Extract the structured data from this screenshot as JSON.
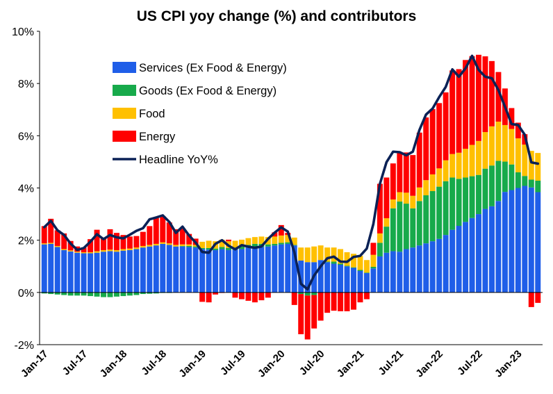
{
  "chart_data": {
    "type": "bar",
    "stacked": true,
    "title": "US CPI yoy change (%) and contributors",
    "xlabel": "",
    "ylabel": "",
    "ylim": [
      -2,
      10
    ],
    "yticks": [
      -2,
      0,
      2,
      4,
      6,
      8,
      10
    ],
    "ytick_labels": [
      "-2%",
      "0%",
      "2%",
      "4%",
      "6%",
      "8%",
      "10%"
    ],
    "xtick_labels": [
      "Jan-17",
      "Jul-17",
      "Jan-18",
      "Jul-18",
      "Jan-19",
      "Jul-19",
      "Jan-20",
      "Jul-20",
      "Jan-21",
      "Jul-21",
      "Jan-22",
      "Jul-22",
      "Jan-23"
    ],
    "xtick_months": [
      "2017-01",
      "2017-07",
      "2018-01",
      "2018-07",
      "2019-01",
      "2019-07",
      "2020-01",
      "2020-07",
      "2021-01",
      "2021-07",
      "2022-01",
      "2022-07",
      "2023-01"
    ],
    "legend_position": "upper-left",
    "categories": [
      "2017-01",
      "2017-02",
      "2017-03",
      "2017-04",
      "2017-05",
      "2017-06",
      "2017-07",
      "2017-08",
      "2017-09",
      "2017-10",
      "2017-11",
      "2017-12",
      "2018-01",
      "2018-02",
      "2018-03",
      "2018-04",
      "2018-05",
      "2018-06",
      "2018-07",
      "2018-08",
      "2018-09",
      "2018-10",
      "2018-11",
      "2018-12",
      "2019-01",
      "2019-02",
      "2019-03",
      "2019-04",
      "2019-05",
      "2019-06",
      "2019-07",
      "2019-08",
      "2019-09",
      "2019-10",
      "2019-11",
      "2019-12",
      "2020-01",
      "2020-02",
      "2020-03",
      "2020-04",
      "2020-05",
      "2020-06",
      "2020-07",
      "2020-08",
      "2020-09",
      "2020-10",
      "2020-11",
      "2020-12",
      "2021-01",
      "2021-02",
      "2021-03",
      "2021-04",
      "2021-05",
      "2021-06",
      "2021-07",
      "2021-08",
      "2021-09",
      "2021-10",
      "2021-11",
      "2021-12",
      "2022-01",
      "2022-02",
      "2022-03",
      "2022-04",
      "2022-05",
      "2022-06",
      "2022-07",
      "2022-08",
      "2022-09",
      "2022-10",
      "2022-11",
      "2022-12",
      "2023-01",
      "2023-02",
      "2023-03",
      "2023-04"
    ],
    "series": [
      {
        "name": "Services (Ex Food & Energy)",
        "color": "#1f5ee8",
        "values": [
          1.84,
          1.86,
          1.74,
          1.62,
          1.57,
          1.52,
          1.5,
          1.5,
          1.52,
          1.56,
          1.58,
          1.56,
          1.6,
          1.62,
          1.66,
          1.72,
          1.76,
          1.8,
          1.86,
          1.82,
          1.76,
          1.76,
          1.74,
          1.72,
          1.66,
          1.64,
          1.62,
          1.66,
          1.62,
          1.64,
          1.66,
          1.72,
          1.76,
          1.74,
          1.76,
          1.8,
          1.84,
          1.86,
          1.8,
          1.22,
          1.16,
          1.16,
          1.24,
          1.16,
          1.1,
          1.06,
          1.0,
          0.94,
          0.82,
          0.74,
          0.92,
          1.38,
          1.52,
          1.58,
          1.56,
          1.66,
          1.72,
          1.8,
          1.88,
          1.96,
          2.05,
          2.2,
          2.4,
          2.55,
          2.7,
          2.85,
          3.0,
          3.2,
          3.3,
          3.5,
          3.85,
          3.92,
          4.0,
          4.08,
          4.02,
          3.84
        ]
      },
      {
        "name": "Goods (Ex Food & Energy)",
        "color": "#17aa4b",
        "values": [
          -0.04,
          -0.06,
          -0.08,
          -0.1,
          -0.12,
          -0.12,
          -0.12,
          -0.14,
          -0.16,
          -0.18,
          -0.18,
          -0.16,
          -0.14,
          -0.12,
          -0.1,
          -0.06,
          -0.05,
          -0.04,
          -0.02,
          -0.02,
          0.0,
          0.02,
          0.04,
          0.04,
          0.04,
          0.06,
          0.06,
          0.08,
          0.08,
          0.08,
          0.1,
          0.1,
          0.1,
          0.12,
          0.08,
          0.06,
          0.06,
          0.06,
          0.02,
          -0.06,
          -0.12,
          -0.1,
          0.0,
          0.02,
          0.08,
          0.04,
          0.02,
          0.02,
          0.04,
          0.02,
          0.06,
          0.52,
          1.0,
          1.64,
          1.92,
          1.74,
          1.5,
          1.7,
          1.84,
          1.92,
          2.0,
          2.06,
          2.0,
          1.8,
          1.7,
          1.6,
          1.5,
          1.54,
          1.56,
          1.54,
          1.16,
          0.98,
          0.6,
          0.38,
          0.3,
          0.44
        ]
      },
      {
        "name": "Food",
        "color": "#ffc000",
        "values": [
          0.04,
          0.04,
          0.04,
          0.04,
          0.04,
          0.04,
          0.04,
          0.04,
          0.06,
          0.06,
          0.06,
          0.06,
          0.06,
          0.06,
          0.06,
          0.06,
          0.06,
          0.06,
          0.06,
          0.06,
          0.06,
          0.06,
          0.06,
          0.06,
          0.24,
          0.28,
          0.28,
          0.28,
          0.26,
          0.26,
          0.26,
          0.26,
          0.26,
          0.28,
          0.28,
          0.28,
          0.28,
          0.28,
          0.28,
          0.5,
          0.56,
          0.6,
          0.56,
          0.54,
          0.54,
          0.56,
          0.52,
          0.52,
          0.54,
          0.48,
          0.46,
          0.36,
          0.32,
          0.34,
          0.36,
          0.42,
          0.48,
          0.52,
          0.58,
          0.64,
          0.7,
          0.8,
          0.9,
          1.0,
          1.1,
          1.2,
          1.3,
          1.4,
          1.5,
          1.5,
          1.4,
          1.36,
          1.3,
          1.2,
          1.1,
          1.06
        ]
      },
      {
        "name": "Energy",
        "color": "#ff0000",
        "values": [
          0.66,
          0.92,
          0.6,
          0.6,
          0.36,
          0.2,
          0.18,
          0.5,
          0.82,
          0.48,
          0.78,
          0.66,
          0.54,
          0.46,
          0.44,
          0.54,
          0.72,
          1.0,
          1.0,
          0.8,
          0.6,
          0.6,
          0.4,
          0.24,
          -0.36,
          -0.38,
          -0.08,
          -0.02,
          0.06,
          -0.2,
          -0.26,
          -0.32,
          -0.38,
          -0.3,
          -0.2,
          0.16,
          0.4,
          0.08,
          -0.48,
          -1.54,
          -1.68,
          -1.28,
          -1.08,
          -0.78,
          -0.7,
          -0.72,
          -0.72,
          -0.66,
          -0.38,
          -0.26,
          0.46,
          1.9,
          1.56,
          1.38,
          1.54,
          1.54,
          1.56,
          2.1,
          2.4,
          2.5,
          2.5,
          2.6,
          3.2,
          3.2,
          3.4,
          3.4,
          3.3,
          2.9,
          2.5,
          1.9,
          1.4,
          0.8,
          0.6,
          0.4,
          -0.56,
          -0.4
        ]
      },
      {
        "name": "Headline YoY%",
        "color": "#0b2156",
        "type": "line",
        "values": [
          2.5,
          2.74,
          2.38,
          2.2,
          1.87,
          1.63,
          1.7,
          1.94,
          2.23,
          2.04,
          2.2,
          2.11,
          2.07,
          2.21,
          2.36,
          2.46,
          2.8,
          2.87,
          2.95,
          2.7,
          2.28,
          2.52,
          2.18,
          1.91,
          1.55,
          1.52,
          1.86,
          2.0,
          1.79,
          1.65,
          1.81,
          1.75,
          1.71,
          1.76,
          2.05,
          2.29,
          2.49,
          2.33,
          1.54,
          0.33,
          0.12,
          0.65,
          1.0,
          1.31,
          1.37,
          1.18,
          1.17,
          1.36,
          1.4,
          1.68,
          2.62,
          4.16,
          4.99,
          5.39,
          5.37,
          5.25,
          5.39,
          6.22,
          6.81,
          7.04,
          7.48,
          7.87,
          8.54,
          8.26,
          8.58,
          9.06,
          8.52,
          8.26,
          8.2,
          7.75,
          7.11,
          6.45,
          6.41,
          6.04,
          4.98,
          4.93
        ]
      }
    ]
  }
}
